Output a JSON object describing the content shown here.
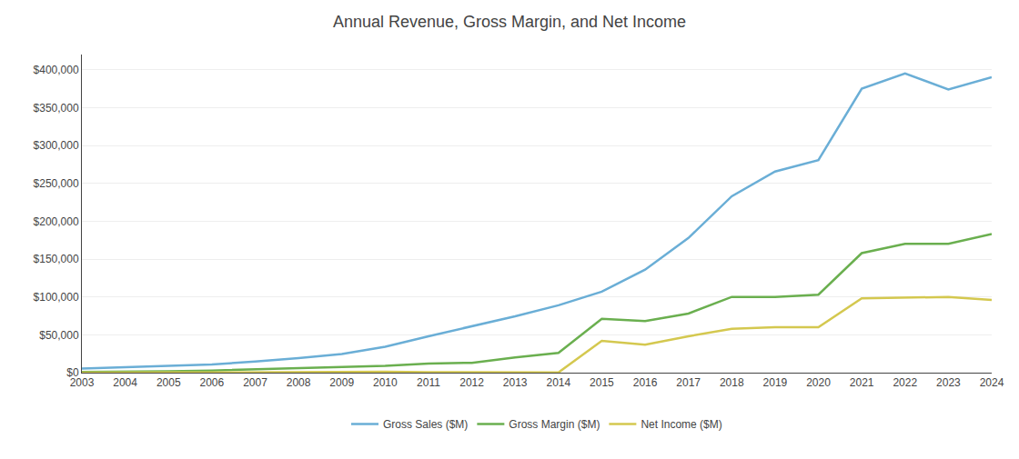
{
  "chart_data": {
    "type": "line",
    "title": "Annual Revenue, Gross Margin, and Net Income",
    "x": [
      2003,
      2004,
      2005,
      2006,
      2007,
      2008,
      2009,
      2010,
      2011,
      2012,
      2013,
      2014,
      2015,
      2016,
      2017,
      2018,
      2019,
      2020,
      2021,
      2022,
      2023,
      2024
    ],
    "series": [
      {
        "name": "Gross Sales ($M)",
        "color": "#6aaed6",
        "values": [
          5264,
          6921,
          8490,
          10711,
          14835,
          19166,
          24509,
          34204,
          48077,
          61093,
          74452,
          88988,
          107006,
          135987,
          177866,
          232887,
          265518,
          280522,
          375000,
          395000,
          374000,
          390000
        ]
      },
      {
        "name": "Gross Margin ($M)",
        "color": "#6aaf4f",
        "values": [
          1000,
          1200,
          1800,
          2800,
          4300,
          5700,
          7000,
          9000,
          12000,
          13000,
          20000,
          26000,
          71000,
          68000,
          78000,
          100000,
          100000,
          103000,
          157796,
          170000,
          170000,
          183000
        ]
      },
      {
        "name": "Net Income ($M)",
        "color": "#d4c84f",
        "values": [
          35,
          588,
          359,
          190,
          476,
          645,
          902,
          1152,
          631,
          600,
          274,
          241,
          42000,
          37000,
          48000,
          58000,
          60000,
          60000,
          98000,
          99000,
          100000,
          96000
        ]
      }
    ],
    "xlim": [
      2003,
      2024
    ],
    "xticks": [
      2003,
      2004,
      2005,
      2006,
      2007,
      2008,
      2009,
      2010,
      2011,
      2012,
      2013,
      2014,
      2015,
      2016,
      2017,
      2018,
      2019,
      2020,
      2021,
      2022,
      2023,
      2024
    ],
    "ylim": [
      0,
      420000
    ],
    "yticks": [
      {
        "value": 0,
        "label": "$0"
      },
      {
        "value": 50000,
        "label": "$50,000"
      },
      {
        "value": 100000,
        "label": "$100,000"
      },
      {
        "value": 150000,
        "label": "$150,000"
      },
      {
        "value": 200000,
        "label": "$200,000"
      },
      {
        "value": 250000,
        "label": "$250,000"
      },
      {
        "value": 300000,
        "label": "$300,000"
      },
      {
        "value": 350000,
        "label": "$350,000"
      },
      {
        "value": 400000,
        "label": "$400,000"
      }
    ],
    "grid": true,
    "legend": "bottom"
  }
}
